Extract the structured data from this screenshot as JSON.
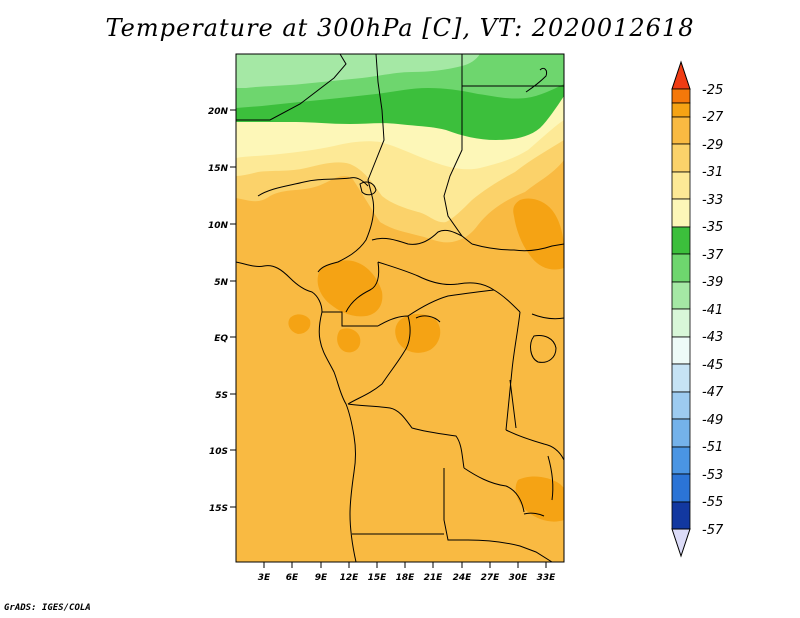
{
  "title": "Temperature at 300hPa [C], VT: 2020012618",
  "credit": "GrADS: IGES/COLA",
  "lat_labels": [
    "20N",
    "15N",
    "10N",
    "5N",
    "EQ",
    "5S",
    "10S",
    "15S"
  ],
  "lon_labels": [
    "3E",
    "6E",
    "9E",
    "12E",
    "15E",
    "18E",
    "21E",
    "24E",
    "27E",
    "30E",
    "33E"
  ],
  "colorbar": {
    "labels": [
      "-25",
      "-27",
      "-29",
      "-31",
      "-33",
      "-35",
      "-37",
      "-39",
      "-41",
      "-43",
      "-45",
      "-47",
      "-49",
      "-51",
      "-53",
      "-55",
      "-57"
    ],
    "colors": [
      "#f03c14",
      "#f5780a",
      "#f5a314",
      "#f9ba42",
      "#fbd26a",
      "#fde996",
      "#fdf7b8",
      "#3cbf3c",
      "#6ed66e",
      "#a5e8a5",
      "#d8f7d8",
      "#eefbf8",
      "#c6e3f5",
      "#9dcbf0",
      "#74b2ea",
      "#4a95e3",
      "#2b74d6",
      "#1c57be",
      "#1238a0",
      "#0b1e7a",
      "#dcdcf8"
    ]
  },
  "field_colors": {
    "t39": "#a5e8a5",
    "t37": "#6ed66e",
    "t35": "#3cbf3c",
    "t33": "#fdf7b8",
    "t31": "#fde996",
    "t29": "#fbd26a",
    "t27": "#f9ba42",
    "t25": "#f5a314"
  }
}
